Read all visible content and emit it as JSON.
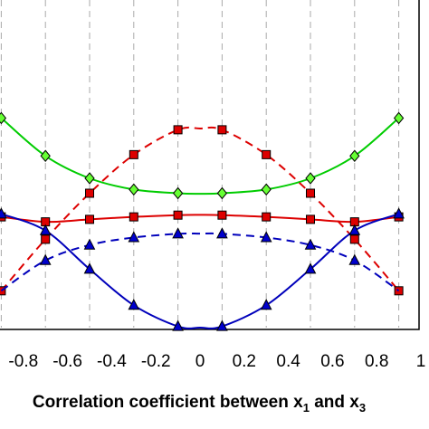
{
  "chart_data": {
    "type": "line",
    "xlabel_parts": [
      "Correlation coefficient between x",
      "1",
      " and x",
      "3"
    ],
    "xlim": [
      -0.9,
      1.0
    ],
    "ylim": [
      0,
      10
    ],
    "grid": {
      "vertical": true,
      "horizontal": false
    },
    "x_ticks": [
      -0.8,
      -0.6,
      -0.4,
      -0.2,
      0,
      0.2,
      0.4,
      0.6,
      0.8,
      1.0
    ],
    "x_tick_labels": [
      "-0.8",
      "-0.6",
      "-0.4",
      "-0.2",
      "0",
      "0.2",
      "0.4",
      "0.6",
      "0.8",
      "1"
    ],
    "series": [
      {
        "color": "#00cc00",
        "marker_color": "#66ff33",
        "marker": "diamond",
        "dash": "solid",
        "curve_x": [
          -0.9,
          -0.7,
          -0.5,
          -0.3,
          -0.1,
          0,
          0.1,
          0.3,
          0.5,
          0.7,
          0.9
        ],
        "curve_y": [
          8.42,
          6.9,
          6.0,
          5.55,
          5.4,
          5.38,
          5.4,
          5.55,
          6.0,
          6.9,
          8.42
        ],
        "marker_x": [
          -0.9,
          -0.7,
          -0.5,
          -0.3,
          -0.1,
          0.1,
          0.3,
          0.5,
          0.7,
          0.9
        ],
        "marker_y": [
          8.42,
          6.9,
          6.0,
          5.55,
          5.4,
          5.4,
          5.55,
          6.0,
          6.9,
          8.42
        ]
      },
      {
        "color": "#dd0000",
        "marker_color": "#dd0000",
        "marker": "square",
        "dash": "dashed",
        "curve_x": [
          -0.9,
          -0.7,
          -0.5,
          -0.3,
          -0.1,
          0,
          0.1,
          0.3,
          0.5,
          0.7,
          0.9
        ],
        "curve_y": [
          1.48,
          3.55,
          5.4,
          6.95,
          7.95,
          8.0,
          7.95,
          6.95,
          5.4,
          3.55,
          1.48
        ],
        "marker_x": [
          -0.9,
          -0.7,
          -0.5,
          -0.3,
          -0.1,
          0.1,
          0.3,
          0.5,
          0.7,
          0.9
        ],
        "marker_y": [
          1.48,
          3.55,
          5.4,
          6.95,
          7.95,
          7.95,
          6.95,
          5.4,
          3.55,
          1.48
        ]
      },
      {
        "color": "#dd0000",
        "marker_color": "#dd0000",
        "marker": "square",
        "dash": "solid",
        "curve_x": [
          -0.9,
          -0.7,
          -0.5,
          -0.3,
          -0.1,
          0,
          0.1,
          0.3,
          0.5,
          0.7,
          0.9
        ],
        "curve_y": [
          4.45,
          4.25,
          4.35,
          4.45,
          4.52,
          4.53,
          4.52,
          4.45,
          4.35,
          4.25,
          4.45
        ],
        "marker_x": [
          -0.9,
          -0.7,
          -0.5,
          -0.3,
          -0.1,
          0.1,
          0.3,
          0.5,
          0.7,
          0.9
        ],
        "marker_y": [
          4.45,
          4.25,
          4.35,
          4.45,
          4.52,
          4.52,
          4.45,
          4.35,
          4.25,
          4.45
        ]
      },
      {
        "color": "#0000bb",
        "marker_color": "#0000cc",
        "marker": "triangle",
        "dash": "dashed",
        "curve_x": [
          -0.9,
          -0.7,
          -0.5,
          -0.3,
          -0.1,
          0,
          0.1,
          0.3,
          0.5,
          0.7,
          0.9
        ],
        "curve_y": [
          1.48,
          2.7,
          3.32,
          3.62,
          3.77,
          3.78,
          3.77,
          3.62,
          3.32,
          2.7,
          1.48
        ],
        "marker_x": [
          -0.7,
          -0.5,
          -0.3,
          -0.1,
          0.1,
          0.3,
          0.5,
          0.7
        ],
        "marker_y": [
          2.7,
          3.32,
          3.62,
          3.77,
          3.77,
          3.62,
          3.32,
          2.7
        ]
      },
      {
        "color": "#0000bb",
        "marker_color": "#0000cc",
        "marker": "triangle",
        "dash": "solid",
        "curve_x": [
          -0.9,
          -0.7,
          -0.5,
          -0.3,
          -0.1,
          0,
          0.1,
          0.3,
          0.5,
          0.7,
          0.9
        ],
        "curve_y": [
          4.57,
          3.9,
          2.35,
          0.9,
          0.05,
          0.0,
          0.05,
          0.9,
          2.35,
          3.9,
          4.57
        ],
        "marker_x": [
          -0.9,
          -0.7,
          -0.5,
          -0.3,
          -0.1,
          0.1,
          0.3,
          0.5,
          0.7,
          0.9
        ],
        "marker_y": [
          4.57,
          3.9,
          2.35,
          0.9,
          0.05,
          0.05,
          0.9,
          2.35,
          3.9,
          4.57
        ]
      }
    ]
  }
}
